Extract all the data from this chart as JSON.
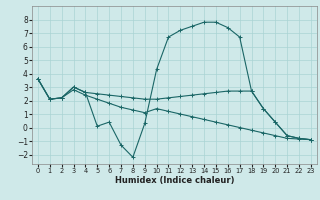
{
  "xlabel": "Humidex (Indice chaleur)",
  "bg_color": "#cfe9e9",
  "grid_color": "#aad4d4",
  "line_color": "#1a6666",
  "xlim": [
    -0.5,
    23.5
  ],
  "ylim": [
    -2.7,
    9.0
  ],
  "yticks": [
    -2,
    -1,
    0,
    1,
    2,
    3,
    4,
    5,
    6,
    7,
    8
  ],
  "xticks": [
    0,
    1,
    2,
    3,
    4,
    5,
    6,
    7,
    8,
    9,
    10,
    11,
    12,
    13,
    14,
    15,
    16,
    17,
    18,
    19,
    20,
    21,
    22,
    23
  ],
  "lines": [
    {
      "x": [
        0,
        1,
        2,
        3,
        4,
        5,
        6,
        7,
        8,
        9,
        10,
        11,
        12,
        13,
        14,
        15,
        16,
        17,
        18,
        19,
        20,
        21,
        22,
        23
      ],
      "y": [
        3.6,
        2.1,
        2.2,
        3.0,
        2.6,
        0.1,
        0.4,
        -1.3,
        -2.2,
        0.3,
        4.3,
        6.7,
        7.2,
        7.5,
        7.8,
        7.8,
        7.4,
        6.7,
        2.7,
        1.4,
        0.4,
        -0.6,
        -0.8,
        -0.9
      ]
    },
    {
      "x": [
        0,
        1,
        2,
        3,
        4,
        5,
        6,
        7,
        8,
        9,
        10,
        11,
        12,
        13,
        14,
        15,
        16,
        17,
        18,
        19,
        20,
        21,
        22,
        23
      ],
      "y": [
        3.6,
        2.1,
        2.2,
        3.0,
        2.6,
        2.5,
        2.4,
        2.3,
        2.2,
        2.1,
        2.1,
        2.2,
        2.3,
        2.4,
        2.5,
        2.6,
        2.7,
        2.7,
        2.7,
        1.4,
        0.4,
        -0.6,
        -0.8,
        -0.9
      ]
    },
    {
      "x": [
        0,
        1,
        2,
        3,
        4,
        5,
        6,
        7,
        8,
        9,
        10,
        11,
        12,
        13,
        14,
        15,
        16,
        17,
        18,
        19,
        20,
        21,
        22,
        23
      ],
      "y": [
        3.6,
        2.1,
        2.2,
        2.8,
        2.4,
        2.1,
        1.8,
        1.5,
        1.3,
        1.1,
        1.4,
        1.2,
        1.0,
        0.8,
        0.6,
        0.4,
        0.2,
        0.0,
        -0.2,
        -0.4,
        -0.6,
        -0.8,
        -0.85,
        -0.9
      ]
    }
  ]
}
